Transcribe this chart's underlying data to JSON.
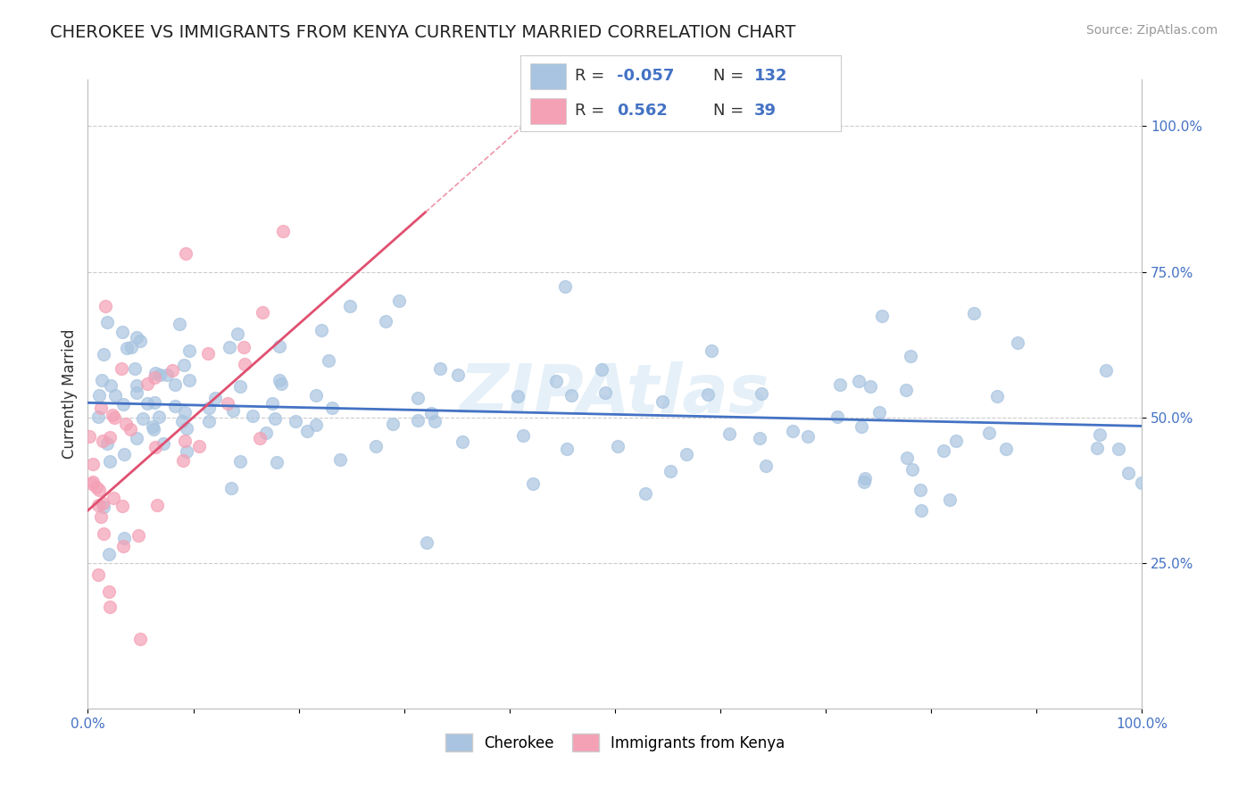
{
  "title": "CHEROKEE VS IMMIGRANTS FROM KENYA CURRENTLY MARRIED CORRELATION CHART",
  "source": "Source: ZipAtlas.com",
  "ylabel": "Currently Married",
  "xlim": [
    0.0,
    1.0
  ],
  "ylim": [
    0.0,
    1.08
  ],
  "cherokee_color": "#a8c4e0",
  "kenya_color": "#f4a0b5",
  "cherokee_line_color": "#4472c4",
  "kenya_line_color": "#e05070",
  "cherokee_label": "Cherokee",
  "kenya_label": "Immigrants from Kenya",
  "watermark": "ZIPAtlas",
  "cherokee_R": -0.057,
  "cherokee_N": 132,
  "kenya_R": 0.562,
  "kenya_N": 39,
  "background_color": "#ffffff",
  "grid_color": "#cccccc",
  "title_fontsize": 14,
  "axis_label_fontsize": 12,
  "tick_fontsize": 11,
  "legend_fontsize": 13,
  "source_fontsize": 10,
  "watermark_color": "#c8dff0",
  "watermark_alpha": 0.45,
  "watermark_fontsize": 55
}
